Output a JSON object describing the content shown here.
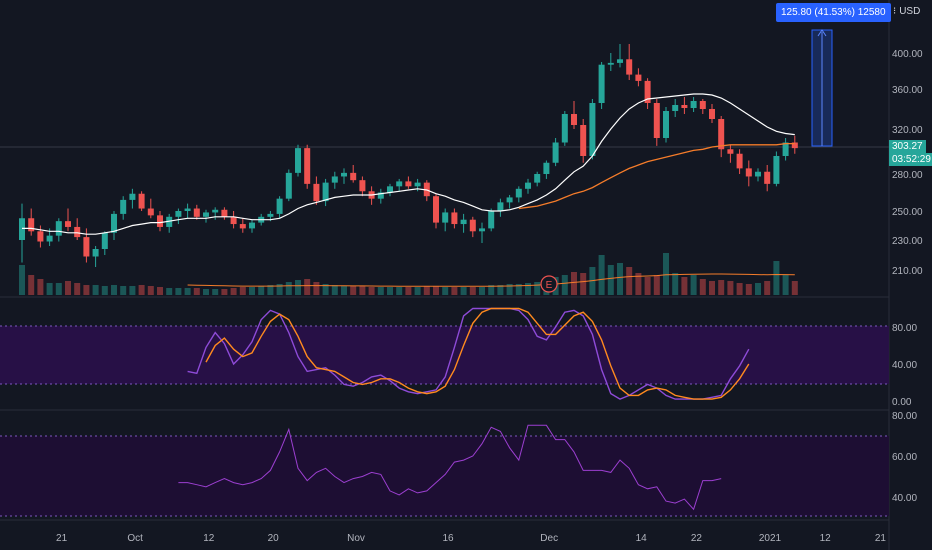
{
  "colors": {
    "background": "#131722",
    "up": "#26a69a",
    "down": "#ef5350",
    "sma_fast": "#ffffff",
    "sma_slow": "#f57c2a",
    "stoch_k": "#8e4bd8",
    "stoch_d": "#ff8a1f",
    "rsi": "#9c3fd1",
    "band_fill": "#2a0f4a",
    "measure": "#2962ff",
    "price_tag": "#26a69a"
  },
  "header": {
    "measure_label": "125.80 (41.53%) 12580",
    "currency_label": "USD",
    "currency_icon": "settings-dots-icon"
  },
  "price_tags": {
    "last_price": "303.27",
    "countdown": "03:52:29"
  },
  "earnings_marker": "E",
  "chart_data": [
    {
      "type": "candlestick",
      "title": "",
      "y_ticks": [
        "400.00",
        "360.00",
        "320.00",
        "280.00",
        "250.00",
        "230.00",
        "210.00"
      ],
      "y_tick_values": [
        400,
        360,
        320,
        280,
        250,
        230,
        210
      ],
      "x_ticks": [
        "21",
        "Oct",
        "12",
        "20",
        "Nov",
        "16",
        "Dec",
        "14",
        "22",
        "2021",
        "12",
        "21"
      ],
      "ohlc": [
        [
          230,
          256,
          215,
          245
        ],
        [
          245,
          252,
          233,
          236
        ],
        [
          236,
          240,
          225,
          229
        ],
        [
          229,
          238,
          226,
          233
        ],
        [
          233,
          245,
          229,
          243
        ],
        [
          243,
          252,
          236,
          239
        ],
        [
          239,
          245,
          230,
          232
        ],
        [
          232,
          238,
          215,
          219
        ],
        [
          219,
          226,
          212,
          224
        ],
        [
          224,
          236,
          220,
          235
        ],
        [
          235,
          250,
          230,
          248
        ],
        [
          248,
          262,
          244,
          259
        ],
        [
          259,
          268,
          252,
          264
        ],
        [
          264,
          266,
          250,
          252
        ],
        [
          252,
          260,
          245,
          247
        ],
        [
          247,
          250,
          236,
          239
        ],
        [
          239,
          248,
          235,
          246
        ],
        [
          246,
          252,
          241,
          250
        ],
        [
          250,
          256,
          245,
          252
        ],
        [
          252,
          255,
          244,
          246
        ],
        [
          246,
          251,
          242,
          249
        ],
        [
          249,
          253,
          244,
          251
        ],
        [
          251,
          253,
          244,
          246
        ],
        [
          246,
          250,
          238,
          241
        ],
        [
          241,
          245,
          235,
          238
        ],
        [
          238,
          244,
          235,
          242
        ],
        [
          242,
          248,
          240,
          246
        ],
        [
          246,
          250,
          243,
          248
        ],
        [
          248,
          262,
          245,
          260
        ],
        [
          260,
          284,
          258,
          281
        ],
        [
          281,
          306,
          278,
          303
        ],
        [
          303,
          306,
          268,
          272
        ],
        [
          272,
          278,
          255,
          258
        ],
        [
          258,
          276,
          254,
          273
        ],
        [
          273,
          282,
          268,
          278
        ],
        [
          278,
          285,
          272,
          281
        ],
        [
          281,
          288,
          273,
          275
        ],
        [
          275,
          278,
          262,
          266
        ],
        [
          266,
          270,
          255,
          260
        ],
        [
          260,
          268,
          256,
          265
        ],
        [
          265,
          272,
          262,
          270
        ],
        [
          270,
          276,
          266,
          274
        ],
        [
          274,
          278,
          268,
          270
        ],
        [
          270,
          276,
          266,
          273
        ],
        [
          273,
          275,
          258,
          262
        ],
        [
          262,
          264,
          238,
          242
        ],
        [
          242,
          252,
          236,
          249
        ],
        [
          249,
          252,
          238,
          241
        ],
        [
          241,
          248,
          235,
          244
        ],
        [
          244,
          246,
          232,
          236
        ],
        [
          236,
          242,
          228,
          238
        ],
        [
          238,
          252,
          236,
          250
        ],
        [
          250,
          260,
          246,
          257
        ],
        [
          257,
          263,
          252,
          261
        ],
        [
          261,
          270,
          257,
          268
        ],
        [
          268,
          276,
          264,
          273
        ],
        [
          273,
          282,
          270,
          280
        ],
        [
          280,
          292,
          276,
          290
        ],
        [
          290,
          312,
          287,
          308
        ],
        [
          308,
          338,
          305,
          335
        ],
        [
          335,
          348,
          320,
          324
        ],
        [
          324,
          330,
          290,
          296
        ],
        [
          296,
          350,
          293,
          346
        ],
        [
          346,
          390,
          340,
          387
        ],
        [
          387,
          400,
          380,
          389
        ],
        [
          389,
          410,
          384,
          393
        ],
        [
          393,
          410,
          370,
          376
        ],
        [
          376,
          383,
          363,
          369
        ],
        [
          369,
          372,
          340,
          346
        ],
        [
          346,
          350,
          305,
          312
        ],
        [
          312,
          342,
          308,
          338
        ],
        [
          338,
          350,
          332,
          344
        ],
        [
          344,
          352,
          335,
          341
        ],
        [
          341,
          352,
          337,
          348
        ],
        [
          348,
          350,
          335,
          340
        ],
        [
          340,
          345,
          326,
          330
        ],
        [
          330,
          333,
          295,
          302
        ],
        [
          302,
          306,
          290,
          298
        ],
        [
          298,
          302,
          280,
          285
        ],
        [
          285,
          292,
          270,
          278
        ],
        [
          278,
          285,
          274,
          282
        ],
        [
          282,
          288,
          266,
          272
        ],
        [
          272,
          300,
          270,
          296
        ],
        [
          296,
          312,
          292,
          308
        ],
        [
          308,
          314,
          298,
          303
        ]
      ],
      "sma_fast": [
        238,
        238,
        237,
        236,
        236,
        235,
        235,
        234,
        234,
        235,
        236,
        238,
        240,
        241,
        242,
        242,
        243,
        244,
        245,
        245,
        245,
        246,
        246,
        246,
        245,
        244,
        244,
        244,
        245,
        248,
        252,
        255,
        257,
        259,
        261,
        262,
        263,
        263,
        263,
        264,
        265,
        266,
        267,
        268,
        267,
        264,
        262,
        259,
        257,
        254,
        251,
        250,
        250,
        251,
        253,
        256,
        259,
        263,
        268,
        275,
        282,
        287,
        296,
        309,
        320,
        331,
        340,
        346,
        350,
        351,
        352,
        353,
        354,
        355,
        355,
        354,
        351,
        346,
        340,
        334,
        328,
        322,
        318,
        316,
        315
      ],
      "sma_slow": [
        null,
        null,
        null,
        null,
        null,
        null,
        null,
        null,
        null,
        null,
        null,
        null,
        null,
        null,
        null,
        null,
        null,
        null,
        null,
        null,
        null,
        null,
        null,
        null,
        null,
        null,
        null,
        null,
        null,
        null,
        null,
        null,
        null,
        null,
        null,
        null,
        null,
        null,
        null,
        null,
        null,
        null,
        null,
        null,
        null,
        null,
        null,
        null,
        null,
        null,
        null,
        null,
        null,
        null,
        252,
        253,
        254,
        256,
        258,
        261,
        264,
        266,
        269,
        273,
        277,
        281,
        285,
        288,
        291,
        293,
        295,
        297,
        299,
        301,
        302,
        304,
        305,
        306,
        306,
        306,
        306,
        306,
        306,
        307,
        307
      ],
      "volume": [
        30,
        20,
        16,
        12,
        12,
        14,
        12,
        10,
        10,
        9,
        10,
        9,
        9,
        10,
        9,
        8,
        7,
        7,
        7,
        7,
        6,
        6,
        6,
        7,
        8,
        8,
        9,
        10,
        11,
        13,
        15,
        16,
        13,
        11,
        10,
        9,
        9,
        9,
        8,
        8,
        8,
        8,
        8,
        8,
        9,
        9,
        8,
        8,
        8,
        8,
        8,
        10,
        10,
        11,
        11,
        12,
        13,
        15,
        18,
        20,
        23,
        22,
        28,
        40,
        30,
        32,
        28,
        22,
        18,
        20,
        42,
        22,
        18,
        20,
        16,
        14,
        15,
        14,
        12,
        11,
        12,
        14,
        34,
        20,
        14
      ],
      "volume_sma": [
        null,
        null,
        null,
        null,
        null,
        null,
        null,
        null,
        null,
        null,
        null,
        null,
        null,
        null,
        null,
        null,
        null,
        null,
        10,
        9.8,
        9.6,
        9.4,
        9.2,
        9,
        8.9,
        8.9,
        8.9,
        8.9,
        9,
        9.2,
        9.3,
        9.4,
        9.4,
        9.4,
        9.3,
        9.2,
        9.1,
        9.1,
        9,
        8.9,
        8.9,
        8.8,
        8.8,
        8.8,
        8.7,
        8.7,
        8.7,
        8.7,
        8.7,
        8.7,
        8.7,
        8.8,
        8.9,
        9,
        9.2,
        9.5,
        9.9,
        10.4,
        11,
        11.8,
        12.6,
        13.4,
        14.4,
        15.6,
        16.6,
        17.6,
        18.4,
        18.8,
        19,
        19.4,
        20.2,
        20.4,
        20.6,
        20.8,
        20.9,
        21,
        21,
        20.9,
        20.8,
        20.6,
        20.4,
        20.2,
        20.5,
        20.4,
        20.2
      ]
    },
    {
      "type": "line",
      "title": "",
      "y_ticks": [
        "80.00",
        "40.00",
        "0.00"
      ],
      "y_tick_values": [
        80,
        40,
        0
      ],
      "band": [
        20,
        80
      ],
      "series": [
        {
          "values": [
            null,
            null,
            null,
            null,
            null,
            null,
            null,
            null,
            null,
            null,
            null,
            null,
            null,
            null,
            null,
            null,
            null,
            null,
            32,
            30,
            58,
            74,
            62,
            40,
            50,
            64,
            88,
            98,
            94,
            74,
            48,
            32,
            34,
            36,
            28,
            18,
            16,
            20,
            26,
            28,
            22,
            14,
            10,
            8,
            10,
            12,
            26,
            58,
            92,
            100,
            100,
            100,
            100,
            100,
            98,
            88,
            70,
            66,
            80,
            96,
            98,
            92,
            72,
            34,
            8,
            2,
            6,
            12,
            18,
            14,
            6,
            2,
            2,
            2,
            2,
            4,
            6,
            24,
            38,
            56
          ]
        },
        {
          "values": [
            null,
            null,
            null,
            null,
            null,
            null,
            null,
            null,
            null,
            null,
            null,
            null,
            null,
            null,
            null,
            null,
            null,
            null,
            null,
            null,
            42,
            60,
            68,
            56,
            48,
            52,
            70,
            86,
            94,
            88,
            70,
            48,
            36,
            34,
            32,
            26,
            20,
            18,
            20,
            24,
            24,
            20,
            14,
            10,
            8,
            10,
            16,
            34,
            60,
            84,
            96,
            100,
            100,
            100,
            100,
            96,
            84,
            72,
            72,
            82,
            92,
            96,
            86,
            66,
            38,
            14,
            6,
            6,
            12,
            14,
            12,
            6,
            4,
            2,
            2,
            2,
            4,
            12,
            24,
            40
          ]
        }
      ]
    },
    {
      "type": "line",
      "title": "",
      "y_ticks": [
        "80.00",
        "60.00",
        "40.00"
      ],
      "y_tick_values": [
        80,
        60,
        40
      ],
      "band": [
        30,
        70
      ],
      "series": [
        {
          "values": [
            null,
            null,
            null,
            null,
            null,
            null,
            null,
            null,
            null,
            null,
            null,
            null,
            null,
            null,
            null,
            null,
            null,
            47,
            47,
            46,
            45,
            47,
            49,
            47,
            46,
            47,
            49,
            53,
            62,
            73,
            54,
            48,
            52,
            54,
            50,
            47,
            49,
            50,
            52,
            51,
            43,
            41,
            44,
            42,
            43,
            47,
            51,
            57,
            58,
            60,
            66,
            74,
            72,
            64,
            58,
            75,
            75,
            75,
            68,
            68,
            62,
            53,
            53,
            53,
            52,
            58,
            54,
            46,
            44,
            45,
            38,
            37,
            39,
            34,
            48,
            48,
            49
          ]
        }
      ]
    }
  ]
}
